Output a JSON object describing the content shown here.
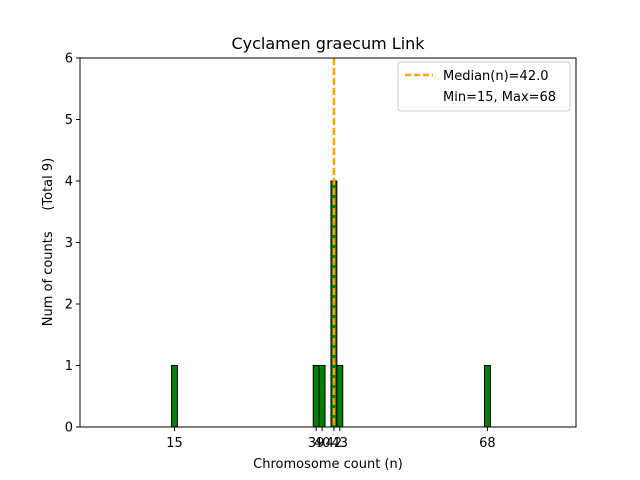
{
  "chart_data": {
    "type": "bar",
    "title": "Cyclamen graecum Link",
    "xlabel": "Chromosome count (n)",
    "ylabel": "Num of counts     (Total 9)",
    "xlim": [
      -1,
      83
    ],
    "ylim": [
      0,
      6
    ],
    "yticks": [
      0,
      1,
      2,
      3,
      4,
      5,
      6
    ],
    "xticks": [
      15,
      39,
      40,
      42,
      43,
      68
    ],
    "bar_color": "#008000",
    "bars": [
      {
        "x": 15,
        "count": 1
      },
      {
        "x": 39,
        "count": 1
      },
      {
        "x": 40,
        "count": 1
      },
      {
        "x": 42,
        "count": 4
      },
      {
        "x": 43,
        "count": 1
      },
      {
        "x": 68,
        "count": 1
      }
    ],
    "median": {
      "value": 42.0,
      "color": "#FFA500"
    },
    "legend": {
      "placement": "top-right",
      "entries": [
        "Median(n)=42.0",
        "Min=15, Max=68"
      ]
    }
  }
}
